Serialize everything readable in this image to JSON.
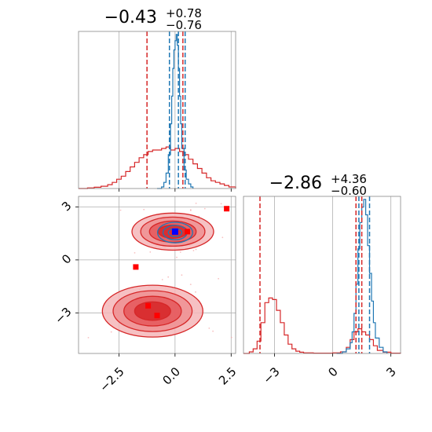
{
  "chart_data": {
    "type": "corner",
    "parameters": [
      "",
      ""
    ],
    "colors": {
      "primary": "#d62728",
      "secondary": "#1f77b4",
      "grid": "#b0b0b0"
    },
    "param1": {
      "title": {
        "median": "−0.43",
        "plus": "+0.78",
        "minus": "−0.76"
      },
      "xlim": [
        -4.3,
        2.7
      ],
      "xticks": [
        -2.5,
        0.0,
        2.5
      ],
      "xtick_labels": [
        "−2.5",
        "0.0",
        "2.5"
      ],
      "quantiles_primary": [
        -1.25,
        0.35
      ],
      "quantiles_secondary": [
        -0.25,
        0.15,
        0.45
      ],
      "hist_primary": {
        "x": [
          -4.3,
          -3.9,
          -3.6,
          -3.3,
          -3.0,
          -2.8,
          -2.6,
          -2.4,
          -2.2,
          -2.0,
          -1.8,
          -1.6,
          -1.4,
          -1.2,
          -1.0,
          -0.8,
          -0.6,
          -0.4,
          -0.2,
          0.0,
          0.2,
          0.4,
          0.6,
          0.8,
          1.0,
          1.2,
          1.4,
          1.6,
          1.8,
          2.0,
          2.2,
          2.4,
          2.7
        ],
        "y": [
          0,
          0.004,
          0.008,
          0.015,
          0.025,
          0.04,
          0.06,
          0.08,
          0.11,
          0.14,
          0.17,
          0.2,
          0.22,
          0.24,
          0.25,
          0.25,
          0.26,
          0.27,
          0.25,
          0.26,
          0.24,
          0.22,
          0.19,
          0.16,
          0.13,
          0.1,
          0.07,
          0.05,
          0.04,
          0.03,
          0.02,
          0.01,
          0.004
        ]
      },
      "hist_secondary": {
        "x": [
          -0.8,
          -0.6,
          -0.5,
          -0.4,
          -0.3,
          -0.2,
          -0.15,
          -0.1,
          -0.05,
          0.0,
          0.05,
          0.1,
          0.15,
          0.2,
          0.25,
          0.3,
          0.4,
          0.5,
          0.6,
          0.7,
          0.8
        ],
        "y": [
          0,
          0.01,
          0.04,
          0.1,
          0.22,
          0.42,
          0.6,
          0.78,
          0.9,
          0.96,
          1.0,
          0.93,
          0.78,
          0.6,
          0.42,
          0.26,
          0.12,
          0.06,
          0.03,
          0.01,
          0
        ]
      }
    },
    "param2": {
      "title": {
        "median": "−2.86",
        "plus": "+4.36",
        "minus": "−0.60"
      },
      "xlim": [
        -4.6,
        3.5
      ],
      "xticks": [
        -3,
        0,
        3
      ],
      "xtick_labels": [
        "−3",
        "0",
        "3"
      ],
      "quantiles_primary": [
        -3.75,
        1.2,
        1.5
      ],
      "quantiles_secondary": [
        1.35,
        1.9
      ],
      "hist_primary": {
        "x": [
          -4.6,
          -4.3,
          -4.1,
          -3.9,
          -3.7,
          -3.5,
          -3.3,
          -3.1,
          -2.9,
          -2.7,
          -2.5,
          -2.3,
          -2.1,
          -1.9,
          -1.7,
          -1.5,
          -1.0,
          -0.5,
          0.0,
          0.4,
          0.7,
          0.9,
          1.1,
          1.3,
          1.5,
          1.7,
          1.9,
          2.1,
          2.3,
          2.6,
          3.0,
          3.5
        ],
        "y": [
          0,
          0.01,
          0.03,
          0.08,
          0.2,
          0.33,
          0.36,
          0.35,
          0.28,
          0.2,
          0.12,
          0.06,
          0.03,
          0.015,
          0.008,
          0.004,
          0.002,
          0.002,
          0.004,
          0.01,
          0.04,
          0.09,
          0.14,
          0.16,
          0.14,
          0.12,
          0.09,
          0.05,
          0.02,
          0.008,
          0.002,
          0
        ]
      },
      "hist_secondary": {
        "x": [
          0.2,
          0.5,
          0.7,
          0.9,
          1.0,
          1.1,
          1.2,
          1.3,
          1.4,
          1.5,
          1.6,
          1.7,
          1.8,
          1.9,
          2.0,
          2.1,
          2.2,
          2.4,
          2.6,
          2.8
        ],
        "y": [
          0,
          0.01,
          0.03,
          0.07,
          0.14,
          0.26,
          0.45,
          0.68,
          0.85,
          0.95,
          1.0,
          0.9,
          0.7,
          0.52,
          0.34,
          0.2,
          0.1,
          0.04,
          0.01,
          0
        ]
      }
    },
    "joint": {
      "xlim": [
        -4.3,
        2.7
      ],
      "ylim": [
        -5.3,
        3.6
      ],
      "yticks": [
        3,
        0,
        -3
      ],
      "ytick_labels": [
        "3",
        "0",
        "−3"
      ],
      "primary_modes": [
        {
          "cx": -0.1,
          "cy": 1.6,
          "sx": 1.3,
          "sy": 0.75
        },
        {
          "cx": -1.0,
          "cy": -2.9,
          "sx": 1.6,
          "sy": 1.05
        }
      ],
      "secondary_mode": {
        "cx": 0.0,
        "cy": 1.55,
        "sx": 0.6,
        "sy": 0.45
      },
      "contour_levels": [
        0.5,
        0.8,
        1.1,
        1.4
      ],
      "primary_points": [
        {
          "x": 2.3,
          "y": 2.9
        },
        {
          "x": -1.75,
          "y": -0.4
        },
        {
          "x": -1.2,
          "y": -2.6
        },
        {
          "x": -0.8,
          "y": -3.15
        },
        {
          "x": 0.55,
          "y": 1.6
        }
      ],
      "secondary_point": {
        "x": 0.0,
        "y": 1.6
      }
    }
  }
}
